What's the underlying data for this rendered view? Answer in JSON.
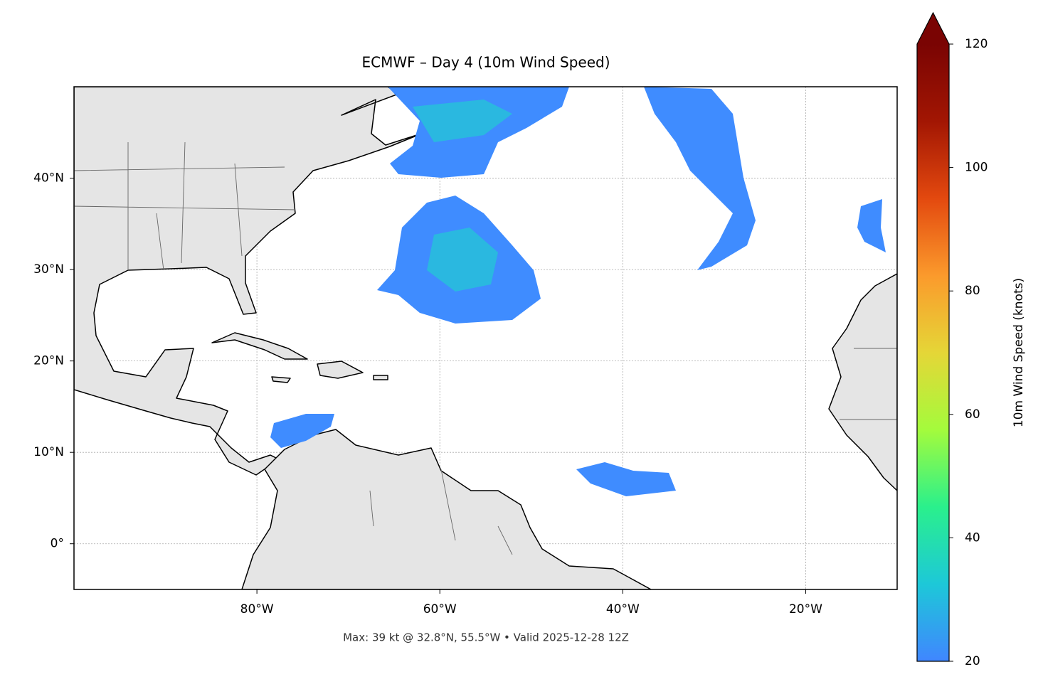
{
  "chart_data": {
    "type": "map",
    "title": "ECMWF – Day 4 (10m Wind Speed)",
    "subtitle": "Max: 39 kt @ 32.8°N, 55.5°W • Valid 2025-12-28 12Z",
    "xlim": [
      -100,
      -10
    ],
    "ylim": [
      -5,
      50
    ],
    "xticks": [
      {
        "value": -80,
        "label": "80°W"
      },
      {
        "value": -60,
        "label": "60°W"
      },
      {
        "value": -40,
        "label": "40°W"
      },
      {
        "value": -20,
        "label": "20°W"
      }
    ],
    "yticks": [
      {
        "value": 0,
        "label": "0°"
      },
      {
        "value": 10,
        "label": "10°N"
      },
      {
        "value": 20,
        "label": "20°N"
      },
      {
        "value": 30,
        "label": "30°N"
      },
      {
        "value": 40,
        "label": "40°N"
      }
    ],
    "grid": true,
    "colorbar": {
      "label": "10m Wind Speed (knots)",
      "lim": [
        20,
        120
      ],
      "ticks": [
        20,
        40,
        60,
        80,
        100,
        120
      ],
      "colors": [
        "#4086ff",
        "#1dc8d8",
        "#2af08c",
        "#a4fb3c",
        "#e5d637",
        "#fb9a2c",
        "#e3490f",
        "#a21603",
        "#7a0403"
      ]
    }
  }
}
